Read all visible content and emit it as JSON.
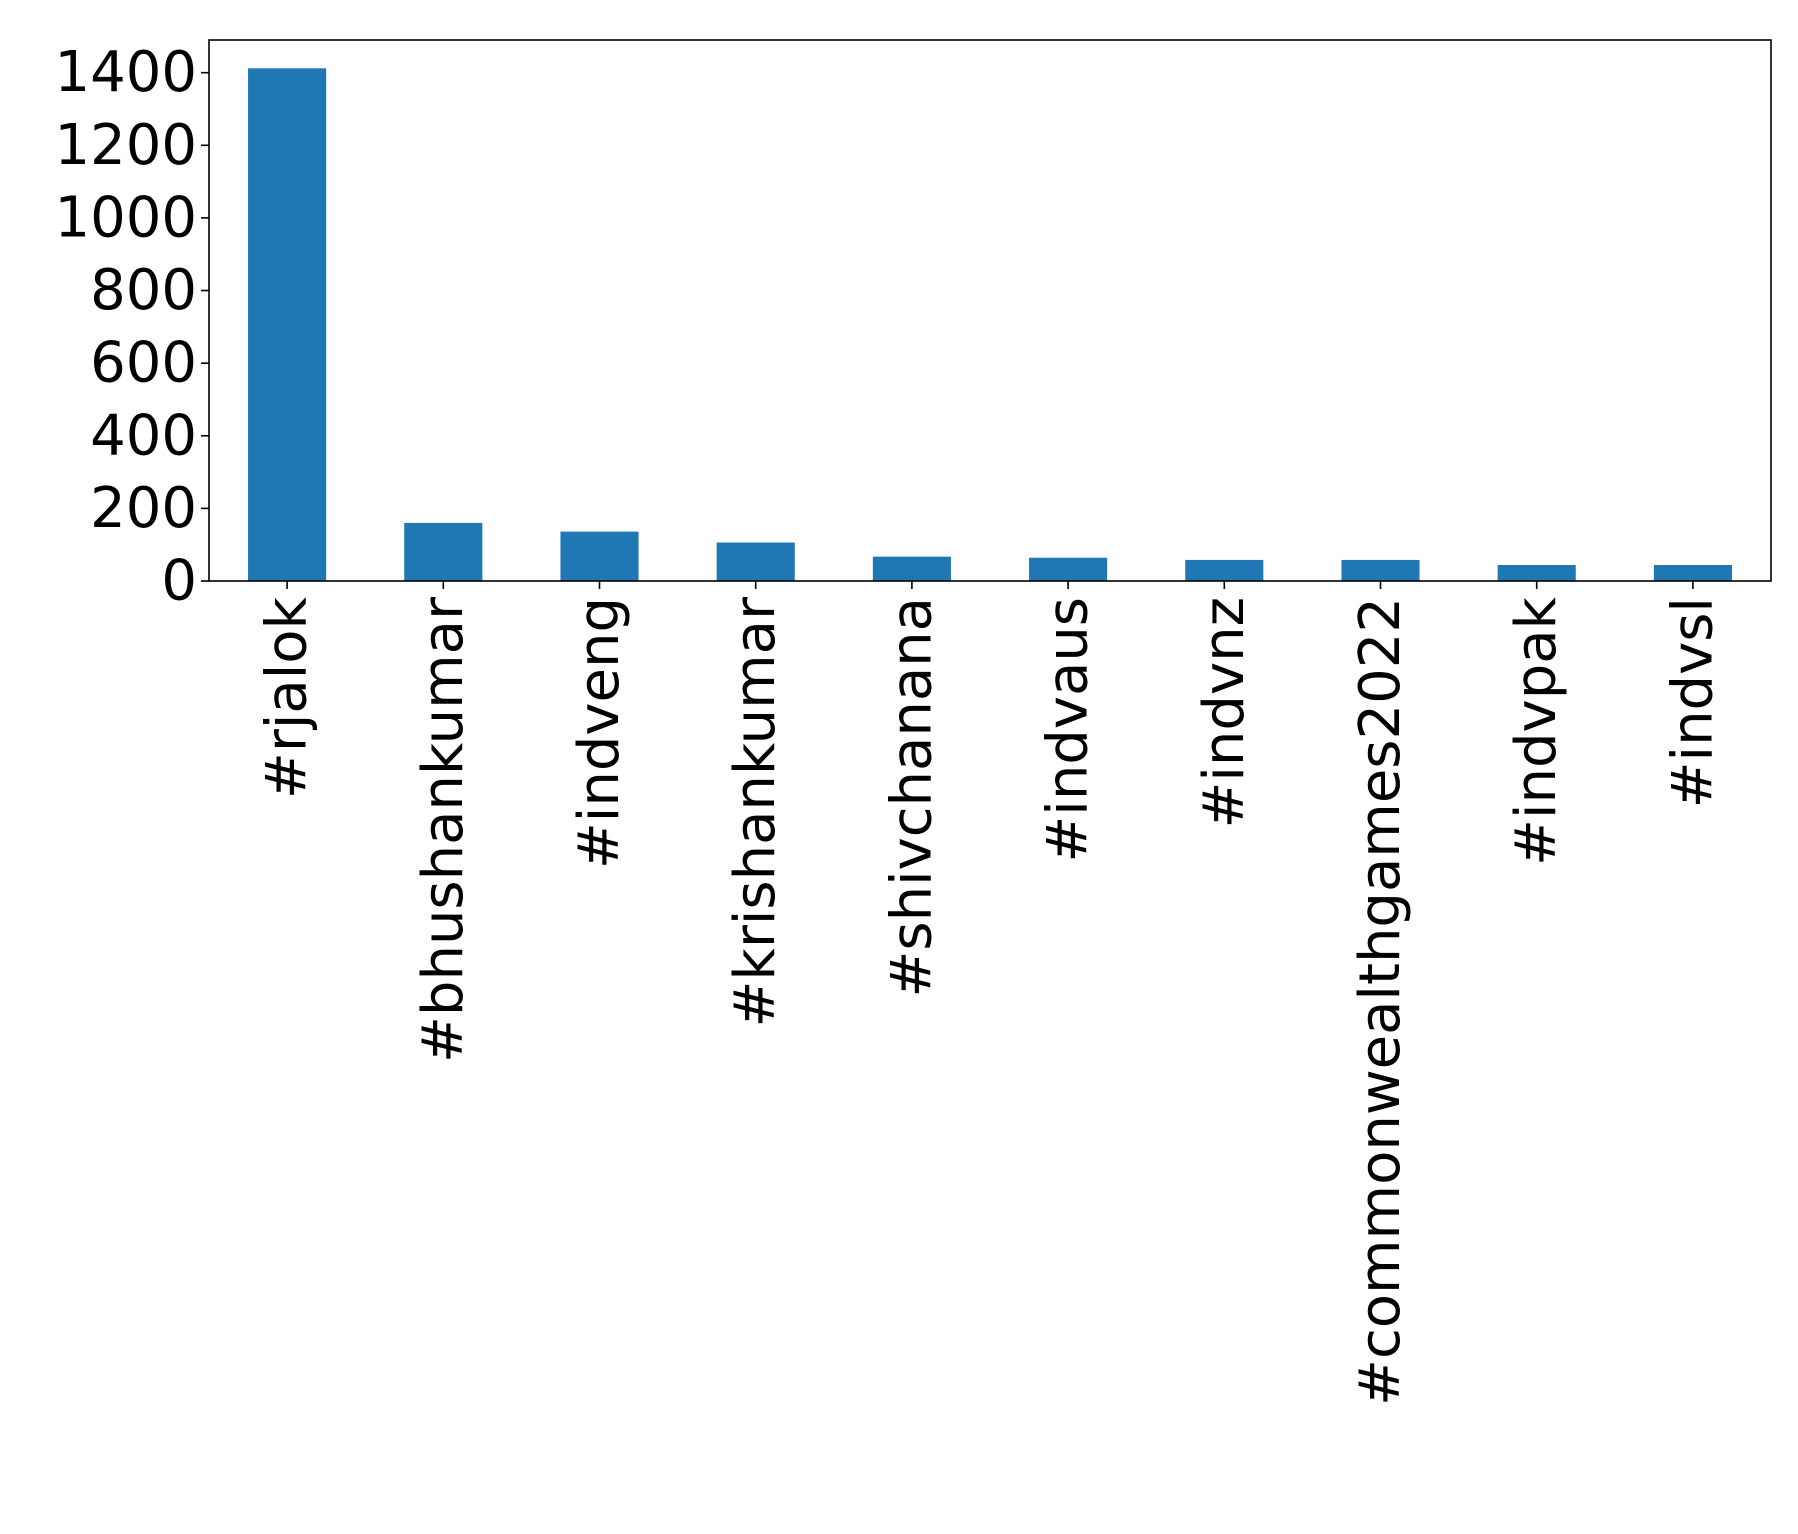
{
  "chart_data": {
    "type": "bar",
    "categories": [
      "#rjalok",
      "#bhushankumar",
      "#indveng",
      "#krishankumar",
      "#shivchanana",
      "#indvaus",
      "#indvnz",
      "#commonwealthgames2022",
      "#indvpak",
      "#indvsl"
    ],
    "values": [
      1412,
      160,
      136,
      106,
      67,
      64,
      58,
      58,
      44,
      44
    ],
    "title": "",
    "xlabel": "",
    "ylabel": "",
    "ylim": [
      0,
      1490
    ],
    "yticks": [
      0,
      200,
      400,
      600,
      800,
      1000,
      1200,
      1400
    ],
    "ytick_labels": [
      "0",
      "200",
      "400",
      "600",
      "800",
      "1000",
      "1200",
      "1400"
    ],
    "grid": false,
    "bar_color": "#1f77b4"
  }
}
